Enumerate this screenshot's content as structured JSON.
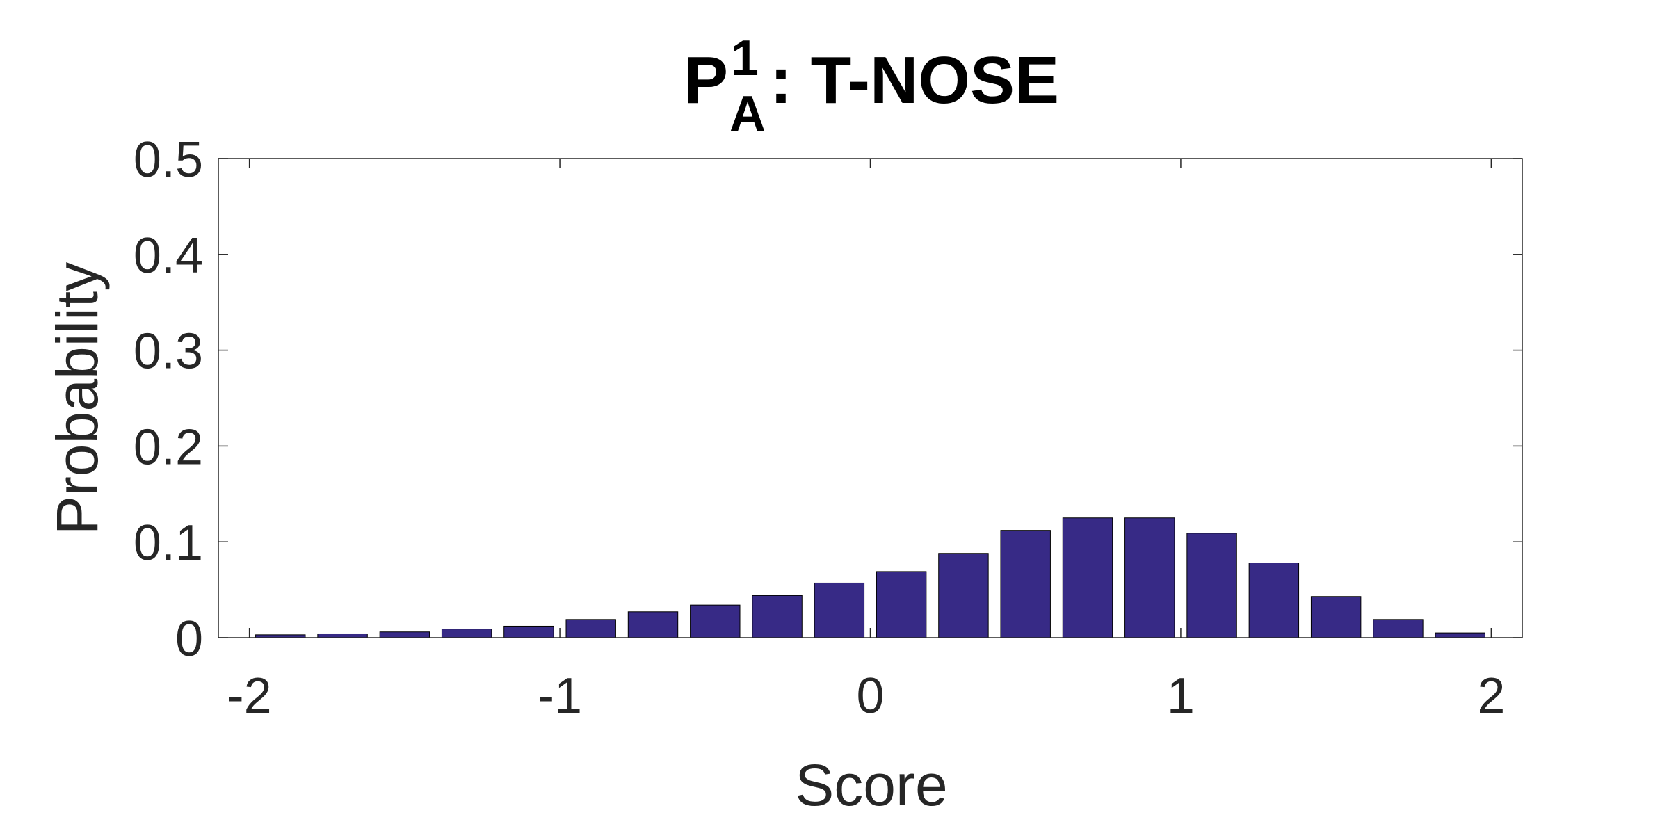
{
  "chart_data": {
    "type": "bar",
    "title": {
      "base": "P",
      "superscript": "1",
      "subscript": "A",
      "rest": ": T-NOSE"
    },
    "xlabel": "Score",
    "ylabel": "Probability",
    "xlim": [
      -2.1,
      2.1
    ],
    "ylim": [
      0,
      0.5
    ],
    "xticks": [
      -2,
      -1,
      0,
      1,
      2
    ],
    "xtick_labels": [
      "-2",
      "-1",
      "0",
      "1",
      "2"
    ],
    "yticks": [
      0,
      0.1,
      0.2,
      0.3,
      0.4,
      0.5
    ],
    "ytick_labels": [
      "0",
      "0.1",
      "0.2",
      "0.3",
      "0.4",
      "0.5"
    ],
    "bar_width": 0.16,
    "x": [
      -1.9,
      -1.7,
      -1.5,
      -1.3,
      -1.1,
      -0.9,
      -0.7,
      -0.5,
      -0.3,
      -0.1,
      0.1,
      0.3,
      0.5,
      0.7,
      0.9,
      1.1,
      1.3,
      1.5,
      1.7,
      1.9
    ],
    "values": [
      0.003,
      0.004,
      0.006,
      0.009,
      0.012,
      0.019,
      0.027,
      0.034,
      0.044,
      0.057,
      0.069,
      0.088,
      0.112,
      0.125,
      0.125,
      0.109,
      0.078,
      0.043,
      0.019,
      0.005
    ],
    "bar_color": "#372a86",
    "grid": false,
    "legend": "none"
  }
}
